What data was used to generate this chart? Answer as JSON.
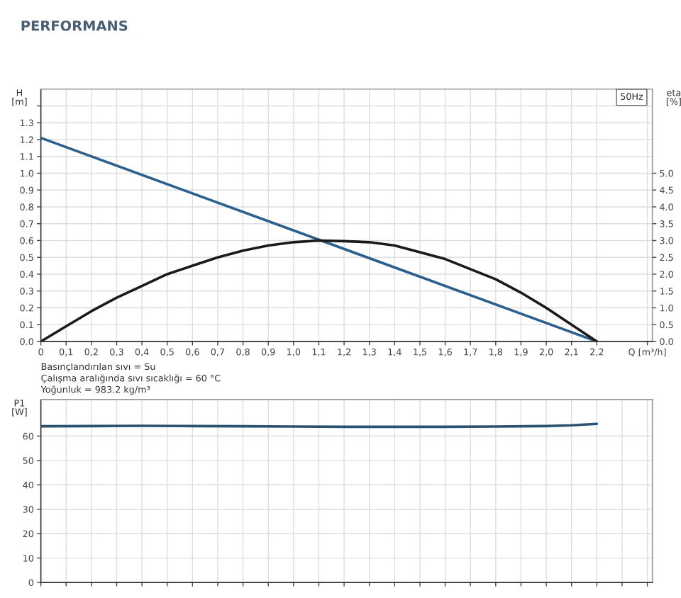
{
  "chart_data": [
    {
      "type": "line",
      "title": "PERFORMANS",
      "ylabel": "H\n[m]",
      "y2label": "eta\n[%]",
      "annotations": [
        "50Hz",
        "Basınçlandırılan sıvı = Su",
        "Çalışma aralığında sıvı sıcaklığı = 60 °C",
        "Yoğunluk = 983.2 kg/m³"
      ],
      "x": [
        0,
        0.1,
        0.2,
        0.3,
        0.4,
        0.5,
        0.6,
        0.7,
        0.8,
        0.9,
        1.0,
        1.1,
        1.2,
        1.3,
        1.4,
        1.5,
        1.6,
        1.7,
        1.8,
        1.9,
        2.0,
        2.1,
        2.2
      ],
      "series": [
        {
          "color": "#2b5f8e",
          "x": [
            0,
            2.2
          ],
          "values": [
            1.21,
            0
          ]
        },
        {
          "color": "#1a1a1a",
          "axis": "y2",
          "values": [
            0,
            0.45,
            0.9,
            1.3,
            1.65,
            2.0,
            2.25,
            2.5,
            2.7,
            2.85,
            2.95,
            3.0,
            2.98,
            2.95,
            2.85,
            2.65,
            2.45,
            2.15,
            1.85,
            1.45,
            1.0,
            0.5,
            0
          ]
        }
      ],
      "xlim": [
        0,
        2.42
      ],
      "xticks": [
        {
          "value": 0,
          "label": "0"
        },
        {
          "value": 0.1,
          "label": "0,1"
        },
        {
          "value": 0.2,
          "label": "0,2"
        },
        {
          "value": 0.3,
          "label": "0,3"
        },
        {
          "value": 0.4,
          "label": "0,4"
        },
        {
          "value": 0.5,
          "label": "0,5"
        },
        {
          "value": 0.6,
          "label": "0,6"
        },
        {
          "value": 0.7,
          "label": "0,7"
        },
        {
          "value": 0.8,
          "label": "0,8"
        },
        {
          "value": 0.9,
          "label": "0,9"
        },
        {
          "value": 1.0,
          "label": "1,0"
        },
        {
          "value": 1.1,
          "label": "1,1"
        },
        {
          "value": 1.2,
          "label": "1,2"
        },
        {
          "value": 1.3,
          "label": "1,3"
        },
        {
          "value": 1.4,
          "label": "1,4"
        },
        {
          "value": 1.5,
          "label": "1,5"
        },
        {
          "value": 1.6,
          "label": "1,6"
        },
        {
          "value": 1.7,
          "label": "1,7"
        },
        {
          "value": 1.8,
          "label": "1,8"
        },
        {
          "value": 1.9,
          "label": "1,9"
        },
        {
          "value": 2.0,
          "label": "2,0"
        },
        {
          "value": 2.1,
          "label": "2,1"
        },
        {
          "value": 2.2,
          "label": "2,2"
        },
        {
          "value": 2.4,
          "label": "Q [m³/h]"
        }
      ],
      "ylim": [
        0,
        1.5
      ],
      "yticks": [
        {
          "value": 0,
          "label": "0.0"
        },
        0.1,
        0.2,
        0.3,
        0.4,
        0.5,
        0.6,
        0.7,
        0.8,
        0.9,
        {
          "value": 1.0,
          "label": "1.0"
        },
        1.1,
        1.2,
        1.3,
        {
          "value": 1.4,
          "label": null
        }
      ],
      "y2lim": [
        0,
        7.5
      ],
      "y2ticks": [
        {
          "value": 0,
          "label": "0.0"
        },
        0.5,
        {
          "value": 1,
          "label": "1.0"
        },
        1.5,
        {
          "value": 2,
          "label": "2.0"
        },
        2.5,
        {
          "value": 3,
          "label": "3.0"
        },
        3.5,
        {
          "value": 4,
          "label": "4.0"
        },
        4.5,
        {
          "value": 5,
          "label": "5.0"
        }
      ],
      "grid": true,
      "legend": false
    },
    {
      "type": "line",
      "ylabel": "P1\n[W]",
      "x": [
        0,
        0.2,
        0.4,
        0.6,
        0.8,
        1.0,
        1.2,
        1.4,
        1.6,
        1.8,
        2.0,
        2.1,
        2.2
      ],
      "series": [
        {
          "color": "#2b5270",
          "values": [
            64,
            64.1,
            64.2,
            64.1,
            64,
            63.9,
            63.8,
            63.8,
            63.8,
            63.9,
            64.1,
            64.4,
            65
          ]
        }
      ],
      "xlim": [
        0,
        2.42
      ],
      "xticks": [
        {
          "value": 0,
          "label": null
        },
        {
          "value": 0.1,
          "label": null
        },
        {
          "value": 0.2,
          "label": null
        },
        {
          "value": 0.3,
          "label": null
        },
        {
          "value": 0.4,
          "label": null
        },
        {
          "value": 0.5,
          "label": null
        },
        {
          "value": 0.6,
          "label": null
        },
        {
          "value": 0.7,
          "label": null
        },
        {
          "value": 0.8,
          "label": null
        },
        {
          "value": 0.9,
          "label": null
        },
        {
          "value": 1.0,
          "label": null
        },
        {
          "value": 1.1,
          "label": null
        },
        {
          "value": 1.2,
          "label": null
        },
        {
          "value": 1.3,
          "label": null
        },
        {
          "value": 1.4,
          "label": null
        },
        {
          "value": 1.5,
          "label": null
        },
        {
          "value": 1.6,
          "label": null
        },
        {
          "value": 1.7,
          "label": null
        },
        {
          "value": 1.8,
          "label": null
        },
        {
          "value": 1.9,
          "label": null
        },
        {
          "value": 2.0,
          "label": null
        },
        {
          "value": 2.1,
          "label": null
        },
        {
          "value": 2.2,
          "label": null
        },
        {
          "value": 2.3,
          "label": null
        },
        {
          "value": 2.4,
          "label": null
        }
      ],
      "ylim": [
        0,
        75
      ],
      "yticks": [
        0,
        10,
        20,
        30,
        40,
        50,
        60
      ],
      "grid": true,
      "legend": false,
      "tick_labels": "y"
    }
  ]
}
